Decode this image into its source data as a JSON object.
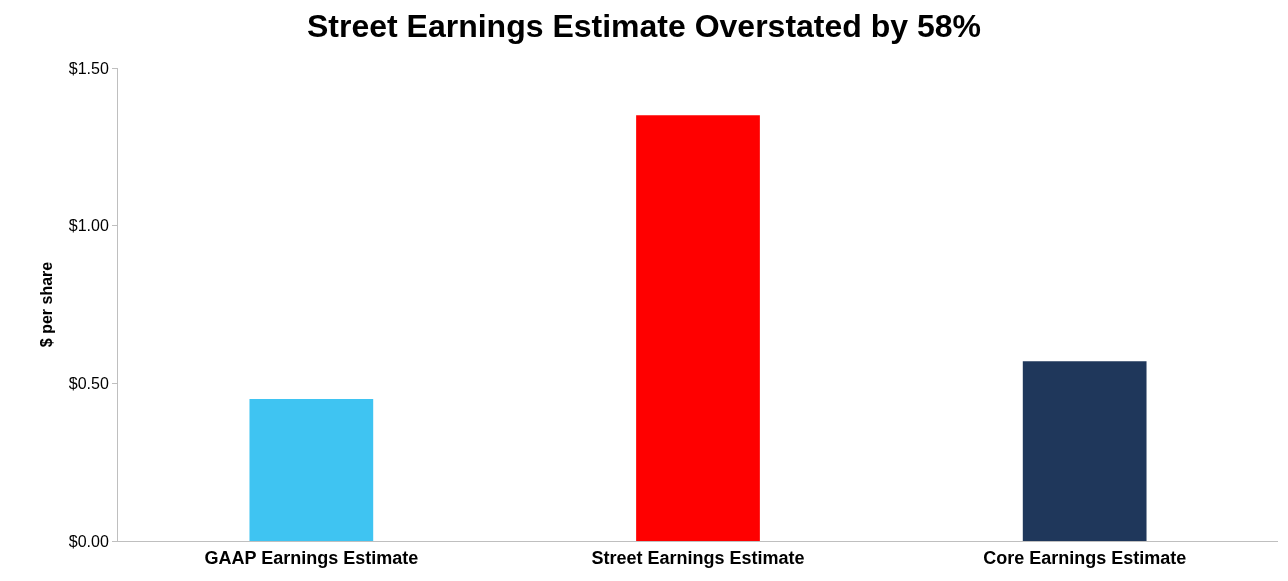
{
  "chart_data": {
    "type": "bar",
    "title": "Street Earnings Estimate Overstated by 58%",
    "ylabel": "$ per share",
    "categories": [
      "GAAP Earnings Estimate",
      "Street Earnings Estimate",
      "Core Earnings Estimate"
    ],
    "values": [
      0.45,
      1.35,
      0.57
    ],
    "colors": [
      "#3fc4f2",
      "#ff0000",
      "#1f375b"
    ],
    "ylim": [
      0,
      1.5
    ],
    "yticks": [
      {
        "value": 0,
        "label": "$0.00"
      },
      {
        "value": 0.5,
        "label": "$0.50"
      },
      {
        "value": 1.0,
        "label": "$1.00"
      },
      {
        "value": 1.5,
        "label": "$1.50"
      }
    ]
  }
}
